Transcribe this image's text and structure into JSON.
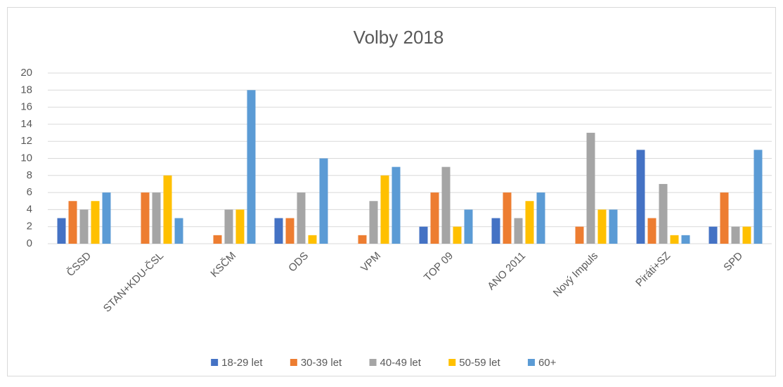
{
  "chart_data": {
    "type": "bar",
    "title": "Volby 2018",
    "categories": [
      "ČSSD",
      "STAN+KDU-ČSL",
      "KSČM",
      "ODS",
      "VPM",
      "TOP 09",
      "ANO 2011",
      "Nový Impuls",
      "Piráti+SZ",
      "SPD"
    ],
    "series": [
      {
        "name": "18-29 let",
        "color": "#4472c4",
        "values": [
          3,
          0,
          0,
          3,
          0,
          2,
          3,
          0,
          11,
          2
        ]
      },
      {
        "name": "30-39 let",
        "color": "#ed7d31",
        "values": [
          5,
          6,
          1,
          3,
          1,
          6,
          6,
          2,
          3,
          6
        ]
      },
      {
        "name": "40-49 let",
        "color": "#a5a5a5",
        "values": [
          4,
          6,
          4,
          6,
          5,
          9,
          3,
          13,
          7,
          2
        ]
      },
      {
        "name": "50-59 let",
        "color": "#ffc000",
        "values": [
          5,
          8,
          4,
          1,
          8,
          2,
          5,
          4,
          1,
          2
        ]
      },
      {
        "name": "60+",
        "color": "#5b9bd5",
        "values": [
          6,
          3,
          18,
          10,
          9,
          4,
          6,
          4,
          1,
          11
        ]
      }
    ],
    "ylim": [
      0,
      20
    ],
    "yticks": [
      0,
      2,
      4,
      6,
      8,
      10,
      12,
      14,
      16,
      18,
      20
    ],
    "grid": true,
    "legend": "bottom"
  }
}
